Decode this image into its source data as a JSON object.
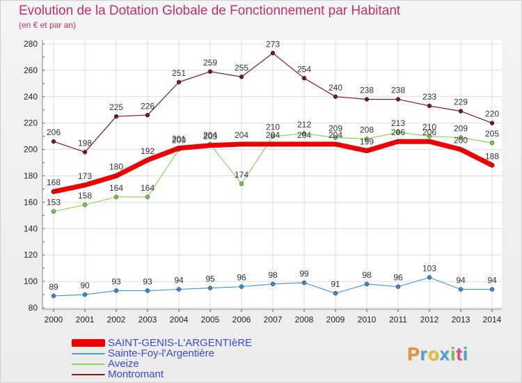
{
  "title": "Evolution de la Dotation Globale de Fonctionnement par Habitant",
  "subtitle": "(en € et par an)",
  "logo": {
    "text": "Proxiti",
    "colors": [
      "#e8902a",
      "#4aa3d8",
      "#e8c32a",
      "#4aa3d8",
      "#7cc04a",
      "#e04a8a",
      "#4aa3d8"
    ]
  },
  "chart_data": {
    "type": "line",
    "title": "Evolution de la Dotation Globale de Fonctionnement par Habitant",
    "subtitle": "(en € et par an)",
    "x": [
      "2000",
      "2001",
      "2002",
      "2003",
      "2004",
      "2005",
      "2006",
      "2007",
      "2008",
      "2009",
      "2010",
      "2011",
      "2012",
      "2013",
      "2014"
    ],
    "ylim": [
      80,
      280
    ],
    "yticks": [
      80,
      100,
      120,
      140,
      160,
      180,
      200,
      220,
      240,
      260,
      280
    ],
    "grid": true,
    "legend_position": "bottom-left",
    "series": [
      {
        "name": "Montromant",
        "color": "#7a1c22",
        "marker": "#6e1a20",
        "width": 1.2,
        "values": [
          206,
          198,
          225,
          226,
          251,
          259,
          255,
          273,
          254,
          240,
          238,
          238,
          233,
          229,
          220
        ]
      },
      {
        "name": "Aveize",
        "color": "#8ed65a",
        "marker": "#7cc04a",
        "width": 1.2,
        "values": [
          153,
          158,
          164,
          164,
          200,
          204,
          174,
          210,
          212,
          209,
          208,
          213,
          210,
          209,
          205
        ]
      },
      {
        "name": "Sainte-Foy-l'Argentière",
        "color": "#4f9ad6",
        "marker": "#3a86c8",
        "width": 1.2,
        "values": [
          89,
          90,
          93,
          93,
          94,
          95,
          96,
          98,
          99,
          91,
          98,
          96,
          103,
          94,
          94
        ]
      },
      {
        "name": "SAINT-GENIS-L'ARGENTIèRE",
        "color": "#ee0000",
        "marker": "#ee0000",
        "width": 7,
        "values": [
          168,
          173,
          180,
          192,
          201,
          203,
          204,
          204,
          204,
          204,
          199,
          206,
          206,
          200,
          188
        ]
      }
    ]
  },
  "legend": [
    {
      "label": "SAINT-GENIS-L'ARGENTIèRE",
      "color": "#ee0000",
      "thickness": "thick"
    },
    {
      "label": "Sainte-Foy-l'Argentière",
      "color": "#4f9ad6",
      "thickness": "thin"
    },
    {
      "label": "Aveize",
      "color": "#8ed65a",
      "thickness": "thin"
    },
    {
      "label": "Montromant",
      "color": "#7a1c22",
      "thickness": "thin"
    }
  ]
}
